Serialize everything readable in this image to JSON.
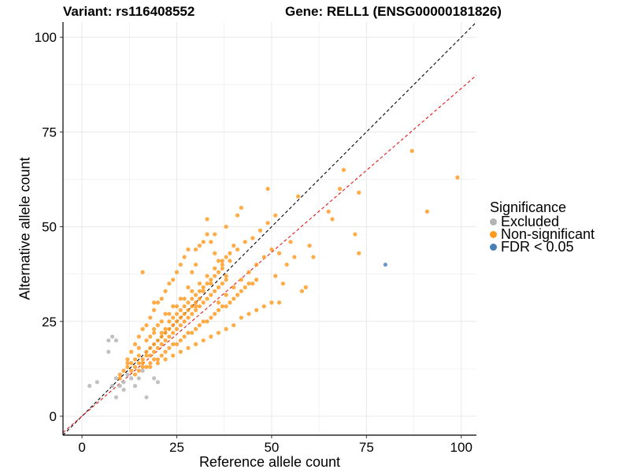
{
  "title_variant": "Variant: rs116408552",
  "title_gene": "Gene: RELL1 (ENSG00000181826)",
  "legend": {
    "title": "Significance",
    "items": [
      {
        "label": "Excluded",
        "color": "#b3b3b3"
      },
      {
        "label": "Non-significant",
        "color": "#ff9a1f"
      },
      {
        "label": "FDR < 0.05",
        "color": "#4a7fb5"
      }
    ]
  },
  "chart_data": {
    "type": "scatter",
    "xlabel": "Reference allele count",
    "ylabel": "Alternative allele count",
    "xlim": [
      -5,
      104
    ],
    "ylim": [
      -5,
      104
    ],
    "xticks": [
      0,
      25,
      50,
      75,
      100
    ],
    "yticks": [
      0,
      25,
      50,
      75,
      100
    ],
    "grid": true,
    "legend_position": "right",
    "reference_lines": [
      {
        "label": "identity",
        "slope": 1.0,
        "intercept": 0,
        "color": "#000000",
        "style": "dashed"
      },
      {
        "label": "fit",
        "slope": 0.865,
        "intercept": 0,
        "color": "#e41a1c",
        "style": "dashed"
      }
    ],
    "series": [
      {
        "name": "Excluded",
        "color": "#b3b3b3",
        "points": [
          [
            2,
            8
          ],
          [
            4,
            9
          ],
          [
            7,
            17
          ],
          [
            7,
            20
          ],
          [
            8,
            21
          ],
          [
            9,
            20
          ],
          [
            9,
            10
          ],
          [
            10,
            8
          ],
          [
            11,
            7
          ],
          [
            11,
            9
          ],
          [
            13,
            10
          ],
          [
            15,
            10
          ],
          [
            16,
            12
          ],
          [
            17,
            5
          ],
          [
            8,
            8
          ],
          [
            9,
            5
          ],
          [
            12,
            11
          ],
          [
            14,
            8
          ],
          [
            19,
            10
          ],
          [
            20,
            9
          ]
        ]
      },
      {
        "name": "Non-significant",
        "color": "#ff9a1f",
        "points": [
          [
            10,
            10
          ],
          [
            10,
            11
          ],
          [
            11,
            12
          ],
          [
            12,
            13
          ],
          [
            13,
            12
          ],
          [
            13,
            14
          ],
          [
            14,
            15
          ],
          [
            15,
            14
          ],
          [
            15,
            16
          ],
          [
            16,
            14
          ],
          [
            16,
            15
          ],
          [
            17,
            16
          ],
          [
            17,
            17
          ],
          [
            18,
            16
          ],
          [
            18,
            18
          ],
          [
            19,
            17
          ],
          [
            19,
            19
          ],
          [
            20,
            18
          ],
          [
            20,
            20
          ],
          [
            21,
            19
          ],
          [
            21,
            21
          ],
          [
            22,
            20
          ],
          [
            22,
            22
          ],
          [
            23,
            21
          ],
          [
            23,
            23
          ],
          [
            24,
            22
          ],
          [
            24,
            24
          ],
          [
            25,
            23
          ],
          [
            25,
            25
          ],
          [
            26,
            24
          ],
          [
            26,
            26
          ],
          [
            27,
            25
          ],
          [
            27,
            27
          ],
          [
            28,
            26
          ],
          [
            28,
            28
          ],
          [
            29,
            27
          ],
          [
            29,
            29
          ],
          [
            30,
            28
          ],
          [
            30,
            30
          ],
          [
            31,
            29
          ],
          [
            31,
            31
          ],
          [
            32,
            30
          ],
          [
            33,
            31
          ],
          [
            34,
            32
          ],
          [
            35,
            33
          ],
          [
            36,
            34
          ],
          [
            37,
            35
          ],
          [
            38,
            36
          ],
          [
            12,
            15
          ],
          [
            13,
            17
          ],
          [
            14,
            19
          ],
          [
            15,
            21
          ],
          [
            16,
            23
          ],
          [
            17,
            24
          ],
          [
            18,
            26
          ],
          [
            19,
            28
          ],
          [
            20,
            30
          ],
          [
            21,
            31
          ],
          [
            22,
            33
          ],
          [
            23,
            35
          ],
          [
            24,
            36
          ],
          [
            25,
            38
          ],
          [
            26,
            40
          ],
          [
            27,
            42
          ],
          [
            28,
            44
          ],
          [
            29,
            38
          ],
          [
            30,
            40
          ],
          [
            31,
            45
          ],
          [
            33,
            52
          ],
          [
            33,
            48
          ],
          [
            34,
            46
          ],
          [
            35,
            43
          ],
          [
            36,
            41
          ],
          [
            37,
            39
          ],
          [
            38,
            37
          ],
          [
            14,
            11
          ],
          [
            15,
            12
          ],
          [
            16,
            13
          ],
          [
            17,
            13
          ],
          [
            18,
            14
          ],
          [
            19,
            15
          ],
          [
            20,
            15
          ],
          [
            21,
            16
          ],
          [
            22,
            17
          ],
          [
            23,
            18
          ],
          [
            24,
            19
          ],
          [
            25,
            19
          ],
          [
            26,
            20
          ],
          [
            27,
            21
          ],
          [
            28,
            22
          ],
          [
            29,
            22
          ],
          [
            30,
            23
          ],
          [
            31,
            24
          ],
          [
            32,
            25
          ],
          [
            33,
            25
          ],
          [
            34,
            26
          ],
          [
            35,
            27
          ],
          [
            36,
            28
          ],
          [
            37,
            29
          ],
          [
            38,
            29
          ],
          [
            39,
            30
          ],
          [
            40,
            31
          ],
          [
            41,
            32
          ],
          [
            42,
            33
          ],
          [
            43,
            34
          ],
          [
            44,
            35
          ],
          [
            45,
            35
          ],
          [
            46,
            36
          ],
          [
            19,
            23
          ],
          [
            21,
            25
          ],
          [
            23,
            27
          ],
          [
            25,
            29
          ],
          [
            27,
            31
          ],
          [
            29,
            33
          ],
          [
            31,
            35
          ],
          [
            33,
            37
          ],
          [
            35,
            39
          ],
          [
            37,
            41
          ],
          [
            39,
            43
          ],
          [
            41,
            44
          ],
          [
            43,
            46
          ],
          [
            45,
            47
          ],
          [
            47,
            49
          ],
          [
            49,
            51
          ],
          [
            51,
            53
          ],
          [
            18,
            13
          ],
          [
            20,
            14
          ],
          [
            22,
            15
          ],
          [
            24,
            16
          ],
          [
            26,
            17
          ],
          [
            28,
            18
          ],
          [
            30,
            19
          ],
          [
            32,
            20
          ],
          [
            34,
            21
          ],
          [
            36,
            22
          ],
          [
            38,
            23
          ],
          [
            40,
            24
          ],
          [
            42,
            26
          ],
          [
            44,
            27
          ],
          [
            46,
            28
          ],
          [
            48,
            29
          ],
          [
            50,
            30
          ],
          [
            52,
            30
          ],
          [
            16,
            38
          ],
          [
            19,
            30
          ],
          [
            22,
            27
          ],
          [
            24,
            29
          ],
          [
            26,
            31
          ],
          [
            28,
            34
          ],
          [
            30,
            29
          ],
          [
            32,
            33
          ],
          [
            34,
            35
          ],
          [
            36,
            30
          ],
          [
            38,
            32
          ],
          [
            40,
            34
          ],
          [
            42,
            36
          ],
          [
            44,
            38
          ],
          [
            46,
            40
          ],
          [
            48,
            42
          ],
          [
            49,
            60
          ],
          [
            50,
            44
          ],
          [
            51,
            37
          ],
          [
            52,
            43
          ],
          [
            53,
            35
          ],
          [
            54,
            40
          ],
          [
            55,
            46
          ],
          [
            56,
            42
          ],
          [
            57,
            58
          ],
          [
            58,
            33
          ],
          [
            59,
            34
          ],
          [
            60,
            45
          ],
          [
            61,
            42
          ],
          [
            65,
            54
          ],
          [
            66,
            52
          ],
          [
            68,
            60
          ],
          [
            69,
            65
          ],
          [
            72,
            48
          ],
          [
            73,
            43
          ],
          [
            73,
            59
          ],
          [
            87,
            70
          ],
          [
            91,
            54
          ],
          [
            99,
            63
          ],
          [
            12,
            14
          ],
          [
            14,
            13
          ],
          [
            15,
            18
          ],
          [
            17,
            20
          ],
          [
            18,
            21
          ],
          [
            19,
            22
          ],
          [
            20,
            24
          ],
          [
            21,
            22
          ],
          [
            22,
            23
          ],
          [
            23,
            25
          ],
          [
            24,
            26
          ],
          [
            25,
            27
          ],
          [
            26,
            28
          ],
          [
            27,
            29
          ],
          [
            28,
            30
          ],
          [
            29,
            31
          ],
          [
            30,
            32
          ],
          [
            31,
            33
          ],
          [
            32,
            34
          ],
          [
            33,
            35
          ],
          [
            34,
            36
          ],
          [
            35,
            37
          ],
          [
            36,
            38
          ],
          [
            37,
            40
          ],
          [
            38,
            42
          ],
          [
            39,
            41
          ],
          [
            40,
            45
          ],
          [
            41,
            53
          ],
          [
            42,
            55
          ],
          [
            38,
            50
          ],
          [
            35,
            48
          ],
          [
            32,
            46
          ],
          [
            30,
            44
          ]
        ]
      },
      {
        "name": "FDR < 0.05",
        "color": "#4a7fb5",
        "points": [
          [
            80,
            40
          ]
        ]
      }
    ]
  }
}
